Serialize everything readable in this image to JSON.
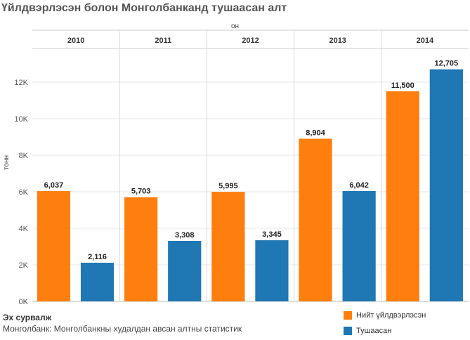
{
  "title": "Үйлдвэрлэсэн болон Монголбанканд тушаасан алт",
  "source": {
    "heading": "Эх сурвалж",
    "text": "Монголбанк: Монголбанкны худалдан авсан алтны статистик"
  },
  "colors": {
    "produced": "#ff7f0e",
    "delivered": "#1f77b4"
  },
  "chart_data": {
    "type": "bar",
    "column_header_title": "он",
    "categories": [
      "2010",
      "2011",
      "2012",
      "2013",
      "2014"
    ],
    "ylabel": "тонн",
    "ylim": [
      0,
      13500
    ],
    "yticks": [
      0,
      2000,
      4000,
      6000,
      8000,
      10000,
      12000
    ],
    "ytick_labels": [
      "0K",
      "2K",
      "4K",
      "6K",
      "8K",
      "10K",
      "12K"
    ],
    "grid": true,
    "legend_position": "bottom-right",
    "series": [
      {
        "name": "Нийт үйлдвэрлэсэн",
        "values": [
          6037,
          5703,
          5995,
          8904,
          11500
        ],
        "labels": [
          "6,037",
          "5,703",
          "5,995",
          "8,904",
          "11,500"
        ]
      },
      {
        "name": "Тушаасан",
        "values": [
          2116,
          3308,
          3345,
          6042,
          12705
        ],
        "labels": [
          "2,116",
          "3,308",
          "3,345",
          "6,042",
          "12,705"
        ]
      }
    ]
  }
}
